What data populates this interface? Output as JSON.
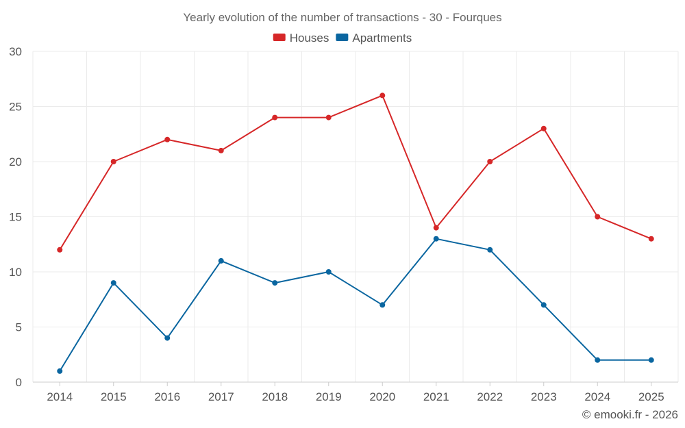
{
  "chart_data": {
    "type": "line",
    "title": "Yearly evolution of the number of transactions - 30 - Fourques",
    "categories": [
      "2014",
      "2015",
      "2016",
      "2017",
      "2018",
      "2019",
      "2020",
      "2021",
      "2022",
      "2023",
      "2024",
      "2025"
    ],
    "series": [
      {
        "name": "Houses",
        "color": "#d62728",
        "values": [
          12,
          20,
          22,
          21,
          24,
          24,
          26,
          14,
          20,
          23,
          15,
          13
        ]
      },
      {
        "name": "Apartments",
        "color": "#0a66a0",
        "values": [
          1,
          9,
          4,
          11,
          9,
          10,
          7,
          13,
          12,
          7,
          2,
          2
        ]
      }
    ],
    "ylim": [
      0,
      30
    ],
    "yticks": [
      0,
      5,
      10,
      15,
      20,
      25,
      30
    ],
    "xlabel": "",
    "ylabel": "",
    "grid": true,
    "legend": "top-center"
  },
  "footer": {
    "credit": "© emooki.fr - 2026"
  }
}
